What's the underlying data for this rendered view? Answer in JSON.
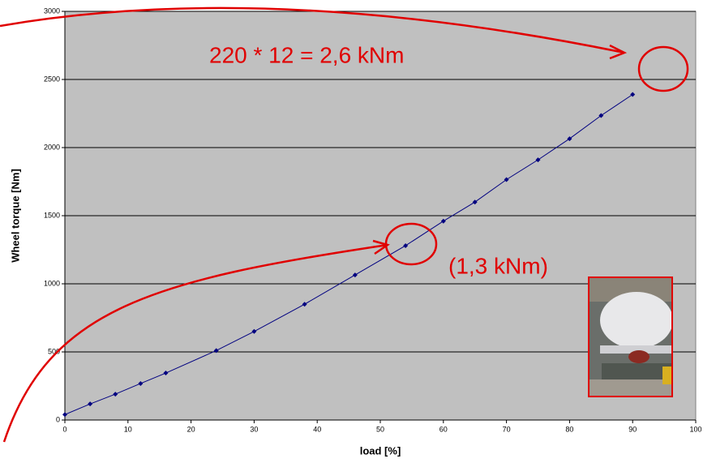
{
  "chart_data": {
    "type": "line",
    "x_label": "load [%]",
    "y_label": "Wheel torque [Nm]",
    "annotations": [
      "220 * 12 = 2,6 kNm",
      "(1,3 kNm)"
    ],
    "x": [
      0,
      4,
      8,
      12,
      16,
      24,
      30,
      38,
      46,
      54,
      60,
      65,
      70,
      75,
      80,
      85,
      90
    ],
    "series": [
      {
        "color": "#000080",
        "values": [
          40,
          118,
          190,
          268,
          345,
          510,
          650,
          850,
          1065,
          1280,
          1460,
          1600,
          1765,
          1910,
          2065,
          2235,
          2390
        ]
      }
    ],
    "xlim": [
      0,
      100
    ],
    "xticks": [
      0,
      10,
      20,
      30,
      40,
      50,
      60,
      70,
      80,
      90,
      100
    ],
    "ylim": [
      0,
      3000
    ],
    "yticks": [
      0,
      500,
      1000,
      1500,
      2000,
      2500,
      3000
    ],
    "grid": true,
    "plot_background": "#c0c0c0"
  }
}
